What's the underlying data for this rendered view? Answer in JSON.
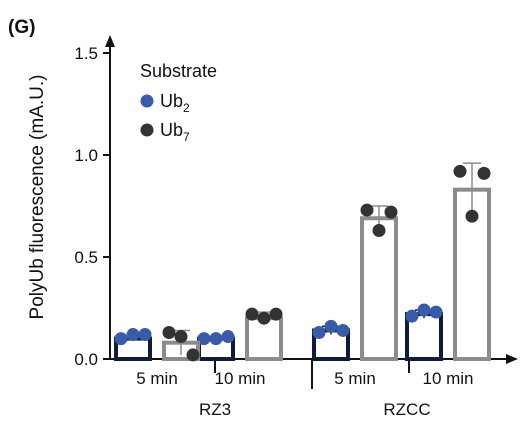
{
  "panel_label": "(G)",
  "colors": {
    "ub2": "#3a5ba8",
    "ub7": "#333333",
    "bar_ub2": "#0f1d3a",
    "bar_ub7": "#8c8c8c",
    "axis": "#111111"
  },
  "chart_data": {
    "type": "bar",
    "ylabel": "PolyUb fluorescence (mA.U.)",
    "ylim": [
      0,
      1.5
    ],
    "yticks": [
      "0.0",
      "0.5",
      "1.0",
      "1.5"
    ],
    "legend": {
      "title": "Substrate",
      "position": "top-left",
      "entries": [
        {
          "key": "ub2",
          "base": "Ub",
          "sub": "2"
        },
        {
          "key": "ub7",
          "base": "Ub",
          "sub": "7"
        }
      ]
    },
    "time_labels": [
      "5 min",
      "10 min",
      "5 min",
      "10 min"
    ],
    "enzymes": [
      "RZ3",
      "RZCC"
    ],
    "series": [
      {
        "name": "Ub2",
        "key": "ub2",
        "values": [
          0.1,
          0.1,
          0.14,
          0.22
        ],
        "errors": [
          0.01,
          0.01,
          0.02,
          0.02
        ],
        "points": [
          [
            0.1,
            0.12,
            0.12
          ],
          [
            0.1,
            0.1,
            0.11
          ],
          [
            0.13,
            0.16,
            0.14
          ],
          [
            0.21,
            0.24,
            0.23
          ]
        ]
      },
      {
        "name": "Ub7",
        "key": "ub7",
        "values": [
          0.08,
          0.2,
          0.69,
          0.83
        ],
        "errors": [
          0.06,
          0.03,
          0.06,
          0.13
        ],
        "points": [
          [
            0.13,
            0.11,
            0.02
          ],
          [
            0.22,
            0.2,
            0.22
          ],
          [
            0.73,
            0.63,
            0.72
          ],
          [
            0.92,
            0.7,
            0.91
          ]
        ]
      }
    ]
  }
}
